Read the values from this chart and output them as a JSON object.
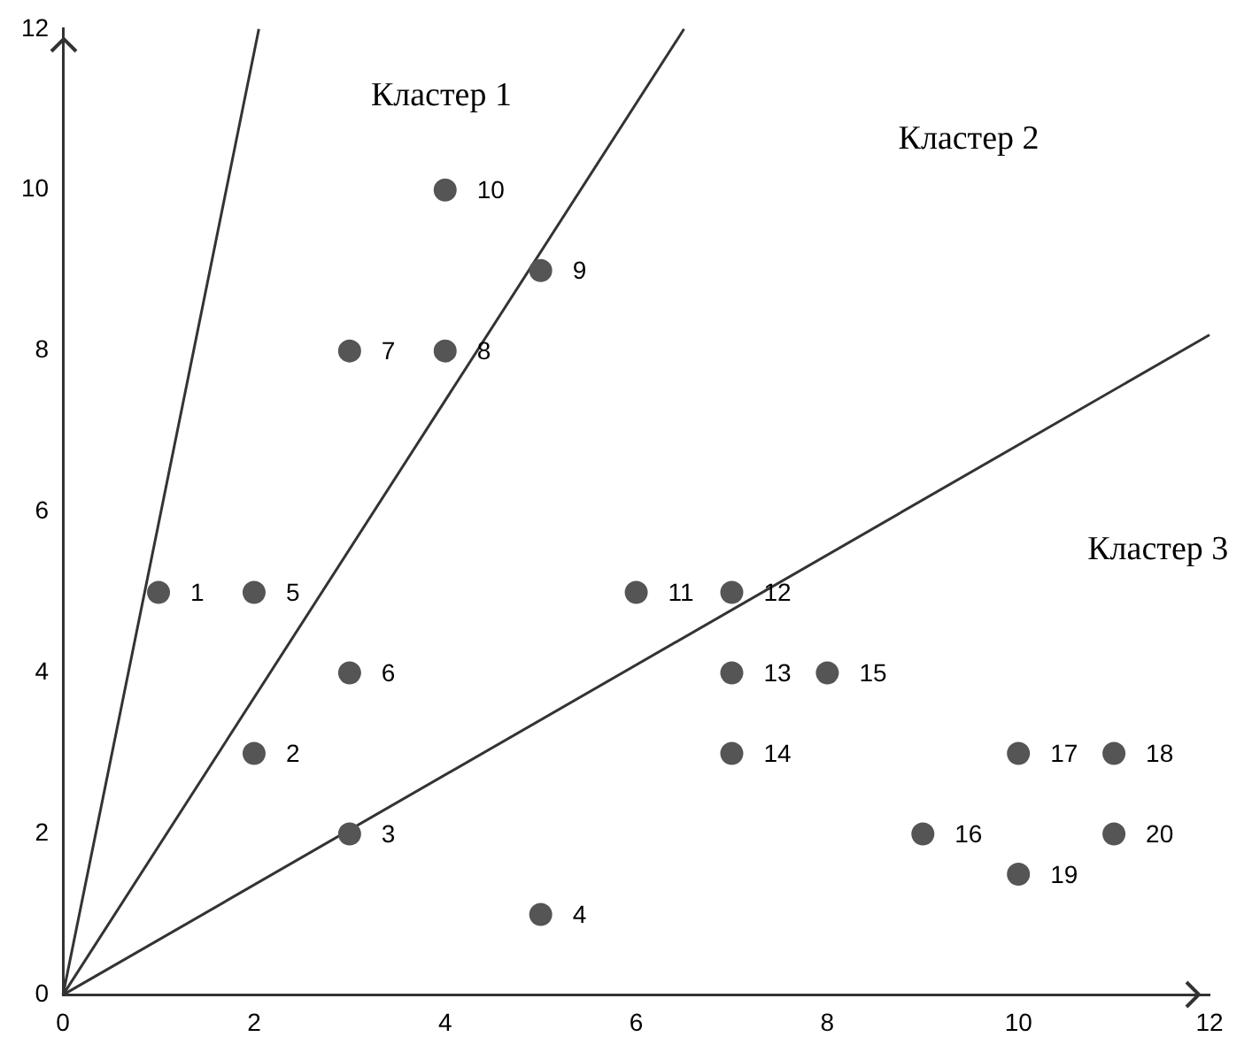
{
  "chart_data": {
    "type": "scatter",
    "xlim": [
      0,
      12
    ],
    "ylim": [
      0,
      12
    ],
    "xticks": [
      0,
      2,
      4,
      6,
      8,
      10,
      12
    ],
    "yticks": [
      0,
      2,
      4,
      6,
      8,
      10,
      12
    ],
    "grid": false,
    "legend": false,
    "series": [
      {
        "type": "scatter",
        "marker": "circle",
        "color": "#555555",
        "x": [
          1,
          2,
          3,
          5,
          2,
          3,
          3,
          4,
          5,
          4,
          6,
          7,
          7,
          7,
          8,
          9,
          10,
          11,
          10,
          11
        ],
        "values": [
          5,
          3,
          2,
          1,
          5,
          4,
          8,
          8,
          9,
          10,
          5,
          5,
          4,
          3,
          4,
          2,
          3,
          3,
          1.5,
          2
        ]
      },
      {
        "type": "line",
        "marker": "none",
        "color": "#333333",
        "x": [
          0,
          2.05
        ],
        "values": [
          0,
          12
        ]
      },
      {
        "type": "line",
        "marker": "none",
        "color": "#333333",
        "x": [
          0,
          6.5
        ],
        "values": [
          0,
          12
        ]
      },
      {
        "type": "line",
        "marker": "none",
        "color": "#333333",
        "x": [
          0,
          12
        ],
        "values": [
          0,
          8.2
        ]
      }
    ],
    "annotations": [
      "Кластер 1",
      "Кластер 2",
      "Кластер 3",
      {
        "text": "1",
        "x": 1,
        "y": 5
      },
      {
        "text": "2",
        "x": 2,
        "y": 3
      },
      {
        "text": "3",
        "x": 3,
        "y": 2
      },
      {
        "text": "4",
        "x": 5,
        "y": 1
      },
      {
        "text": "5",
        "x": 2,
        "y": 5
      },
      {
        "text": "6",
        "x": 3,
        "y": 4
      },
      {
        "text": "7",
        "x": 3,
        "y": 8
      },
      {
        "text": "8",
        "x": 4,
        "y": 8
      },
      {
        "text": "9",
        "x": 5,
        "y": 9
      },
      {
        "text": "10",
        "x": 4,
        "y": 10
      },
      {
        "text": "11",
        "x": 6,
        "y": 5
      },
      {
        "text": "12",
        "x": 7,
        "y": 5
      },
      {
        "text": "13",
        "x": 7,
        "y": 4
      },
      {
        "text": "14",
        "x": 7,
        "y": 3
      },
      {
        "text": "15",
        "x": 8,
        "y": 4
      },
      {
        "text": "16",
        "x": 9,
        "y": 2
      },
      {
        "text": "17",
        "x": 10,
        "y": 3
      },
      {
        "text": "18",
        "x": 11,
        "y": 3
      },
      {
        "text": "19",
        "x": 10,
        "y": 1.5
      },
      {
        "text": "20",
        "x": 11,
        "y": 2
      }
    ]
  }
}
